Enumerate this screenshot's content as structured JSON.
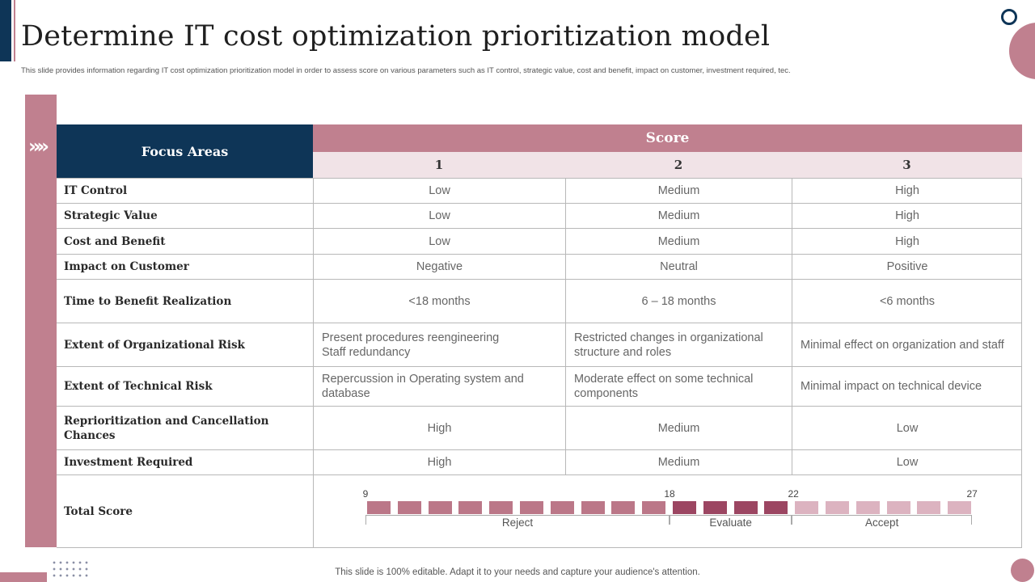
{
  "header": {
    "title": "Determine IT cost optimization prioritization model",
    "subtitle": "This slide provides information regarding IT cost optimization prioritization model in order to assess score on various parameters such as IT control, strategic value, cost and benefit, impact on customer, investment required, tec."
  },
  "decor": {
    "chevron": "»»"
  },
  "table": {
    "focus_header": "Focus Areas",
    "score_header": "Score",
    "score_columns": [
      "1",
      "2",
      "3"
    ],
    "rows": [
      {
        "area": "IT Control",
        "scores": [
          "Low",
          "Medium",
          "High"
        ]
      },
      {
        "area": "Strategic Value",
        "scores": [
          "Low",
          "Medium",
          "High"
        ]
      },
      {
        "area": "Cost and Benefit",
        "scores": [
          "Low",
          "Medium",
          "High"
        ]
      },
      {
        "area": "Impact on Customer",
        "scores": [
          "Negative",
          "Neutral",
          "Positive"
        ]
      },
      {
        "area": "Time to Benefit Realization",
        "scores": [
          "<18 months",
          "6 – 18 months",
          "<6 months"
        ]
      },
      {
        "area": "Extent of Organizational Risk",
        "scores": [
          "Present procedures reengineering\nStaff redundancy",
          "Restricted changes in organizational structure and roles",
          "Minimal effect on organization and staff"
        ]
      },
      {
        "area": "Extent of Technical Risk",
        "scores": [
          "Repercussion in Operating system and database",
          "Moderate effect on some technical components",
          "Minimal impact on technical device"
        ]
      },
      {
        "area": "Reprioritization and Cancellation Chances",
        "scores": [
          "High",
          "Medium",
          "Low"
        ]
      },
      {
        "area": "Investment Required",
        "scores": [
          "High",
          "Medium",
          "Low"
        ]
      }
    ],
    "total_label": "Total Score"
  },
  "score_scale": {
    "ticks": [
      "9",
      "18",
      "22",
      "27"
    ],
    "segments": [
      {
        "label": "Reject",
        "blocks": 10,
        "color": "#bb7788"
      },
      {
        "label": "Evaluate",
        "blocks": 4,
        "color": "#9c4662"
      },
      {
        "label": "Accept",
        "blocks": 6,
        "color": "#dcb3c0"
      }
    ]
  },
  "colors": {
    "navy": "#0e3557",
    "rose": "#c0808f",
    "rose_light": "#f1e3e7"
  },
  "footer": {
    "text": "This slide is 100% editable. Adapt it to your needs and capture your audience's attention."
  }
}
